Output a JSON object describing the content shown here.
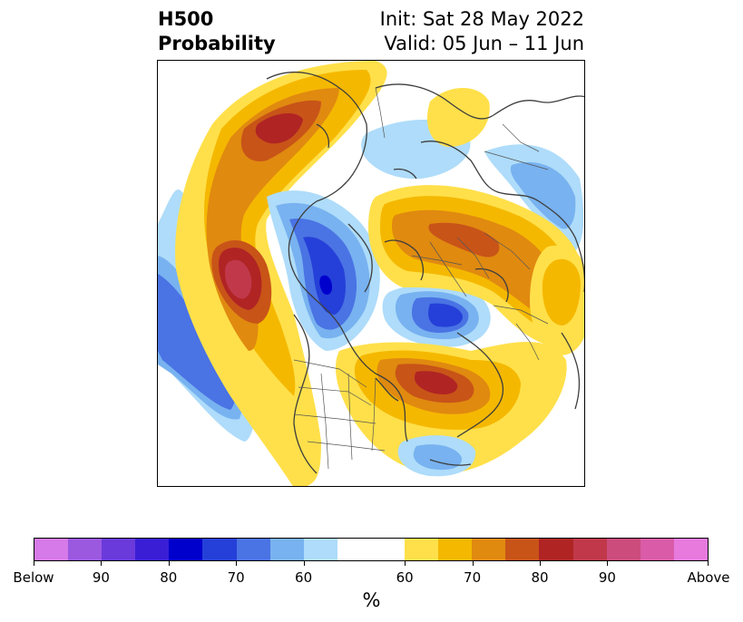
{
  "header": {
    "title_line1": "H500",
    "title_line2": "Probability",
    "init_text": "Init: Sat 28 May 2022",
    "valid_text": "Valid: 05 Jun – 11 Jun"
  },
  "colorbar": {
    "colors": [
      "#d57ae8",
      "#9b59e0",
      "#6a3adb",
      "#3a1ed6",
      "#0000cd",
      "#2540d8",
      "#4a73e4",
      "#78b2f0",
      "#aedcfa",
      "#ffffff",
      "#ffe04a",
      "#f5b800",
      "#e08a10",
      "#c85418",
      "#b02424",
      "#c0384a",
      "#cc4c7c",
      "#da5ca8",
      "#e87ade"
    ],
    "tick_labels": [
      "Below",
      "90",
      "80",
      "70",
      "60",
      "60",
      "70",
      "80",
      "90",
      "Above"
    ],
    "units": "%"
  },
  "icons": {
    "map": "polar-stereographic-map"
  }
}
